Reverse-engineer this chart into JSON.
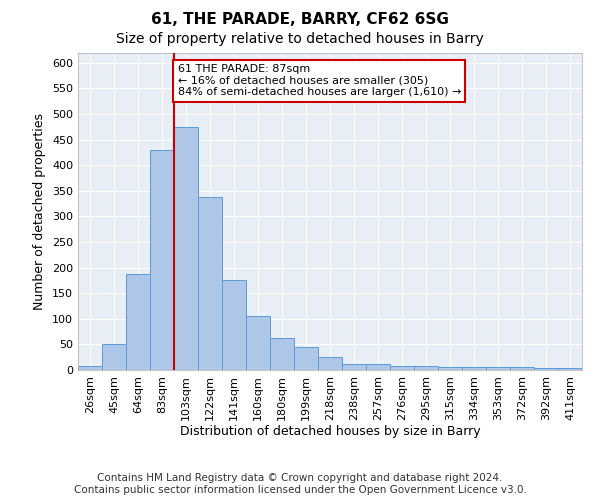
{
  "title": "61, THE PARADE, BARRY, CF62 6SG",
  "subtitle": "Size of property relative to detached houses in Barry",
  "xlabel": "Distribution of detached houses by size in Barry",
  "ylabel": "Number of detached properties",
  "categories": [
    "26sqm",
    "45sqm",
    "64sqm",
    "83sqm",
    "103sqm",
    "122sqm",
    "141sqm",
    "160sqm",
    "180sqm",
    "199sqm",
    "218sqm",
    "238sqm",
    "257sqm",
    "276sqm",
    "295sqm",
    "315sqm",
    "334sqm",
    "353sqm",
    "372sqm",
    "392sqm",
    "411sqm"
  ],
  "values": [
    7,
    51,
    188,
    430,
    475,
    338,
    175,
    106,
    62,
    45,
    25,
    11,
    11,
    8,
    8,
    5,
    5,
    5,
    6,
    4,
    4
  ],
  "bar_color": "#aec6e8",
  "bar_edge_color": "#5b9bd5",
  "property_line_x": 3.5,
  "annotation_text": "61 THE PARADE: 87sqm\n← 16% of detached houses are smaller (305)\n84% of semi-detached houses are larger (1,610) →",
  "annotation_box_color": "#ffffff",
  "annotation_box_edge": "#cc0000",
  "vline_color": "#cc0000",
  "ylim": [
    0,
    620
  ],
  "yticks": [
    0,
    50,
    100,
    150,
    200,
    250,
    300,
    350,
    400,
    450,
    500,
    550,
    600
  ],
  "footer": "Contains HM Land Registry data © Crown copyright and database right 2024.\nContains public sector information licensed under the Open Government Licence v3.0.",
  "fig_color": "#ffffff",
  "bg_color": "#e8eef5",
  "grid_color": "#ffffff",
  "title_fontsize": 11,
  "subtitle_fontsize": 10,
  "axis_label_fontsize": 9,
  "tick_fontsize": 8,
  "annotation_fontsize": 8,
  "footer_fontsize": 7.5
}
